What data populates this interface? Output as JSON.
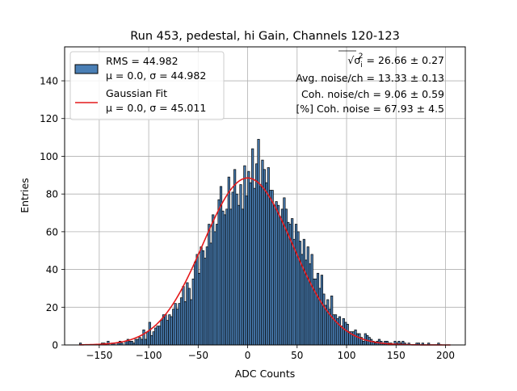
{
  "chart_data": {
    "type": "bar",
    "title": "Run 453, pedestal, hi Gain, Channels 120-123",
    "xlabel": "ADC Counts",
    "ylabel": "Entries",
    "xlim": [
      -185,
      220
    ],
    "ylim": [
      0,
      158
    ],
    "x_ticks": [
      -150,
      -100,
      -50,
      0,
      50,
      100,
      150,
      200
    ],
    "y_ticks": [
      0,
      20,
      40,
      60,
      80,
      100,
      120,
      140
    ],
    "grid": true,
    "legend_position": "top-left",
    "legend": [
      {
        "line1": "RMS = 44.982",
        "line2": "μ = 0.0, σ = 44.982",
        "kind": "histogram"
      },
      {
        "line1": "Gaussian Fit",
        "line2": "μ = 0.0, σ = 45.011",
        "kind": "line"
      }
    ],
    "annotations": [
      {
        "prefix": "√σ",
        "sup": "2",
        "sub": "i",
        "suffix": " = 26.66 ± 0.27"
      },
      {
        "text": "Avg. noise/ch = 13.33 ± 0.13"
      },
      {
        "text": "Coh. noise/ch = 9.06 ± 0.59"
      },
      {
        "text": "[%] Coh. noise = 67.93 ± 4.5"
      }
    ],
    "histogram": {
      "bin_width": 2,
      "x_start": -170,
      "values": [
        1,
        0,
        0,
        0,
        0,
        0,
        0,
        0,
        0,
        0,
        0,
        1,
        1,
        0,
        2,
        0,
        1,
        1,
        0,
        1,
        2,
        1,
        0,
        2,
        3,
        2,
        2,
        1,
        3,
        3,
        4,
        3,
        8,
        3,
        7,
        12,
        5,
        7,
        9,
        10,
        10,
        13,
        16,
        16,
        13,
        16,
        15,
        19,
        22,
        19,
        22,
        25,
        31,
        23,
        33,
        30,
        24,
        35,
        44,
        48,
        38,
        52,
        50,
        46,
        52,
        64,
        54,
        69,
        60,
        64,
        77,
        84,
        71,
        69,
        72,
        89,
        72,
        81,
        93,
        80,
        74,
        85,
        72,
        95,
        79,
        92,
        86,
        104,
        83,
        96,
        109,
        84,
        98,
        93,
        86,
        94,
        82,
        82,
        74,
        76,
        74,
        68,
        72,
        78,
        72,
        65,
        64,
        67,
        56,
        64,
        60,
        55,
        48,
        56,
        45,
        52,
        43,
        48,
        35,
        35,
        38,
        30,
        37,
        27,
        21,
        24,
        19,
        26,
        16,
        16,
        14,
        15,
        10,
        14,
        12,
        11,
        7,
        7,
        7,
        8,
        6,
        6,
        4,
        2,
        6,
        5,
        4,
        3,
        2,
        1,
        2,
        3,
        2,
        1,
        2,
        2,
        1,
        1,
        0,
        2,
        1,
        2,
        1,
        2,
        1,
        0,
        1,
        0,
        0,
        0,
        1,
        1,
        0,
        1,
        0,
        0,
        1,
        0,
        0,
        0,
        0,
        1
      ]
    },
    "gaussian_fit": {
      "amplitude": 88.5,
      "mu": 0.0,
      "sigma": 45.011
    },
    "colors": {
      "bar_fill": "#4a7fb5",
      "bar_edge": "#000000",
      "fit_line": "#e41a1c",
      "grid": "#b0b0b0"
    }
  }
}
